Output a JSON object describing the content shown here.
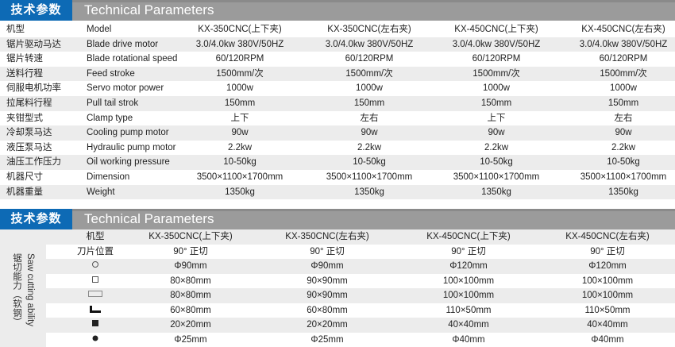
{
  "section1": {
    "title_cn": "技术参数",
    "title_en": "Technical Parameters"
  },
  "table1": {
    "rows": [
      {
        "cn": "机型",
        "en": "Model",
        "values": [
          "KX-350CNC(上下夹)",
          "KX-350CNC(左右夹)",
          "KX-450CNC(上下夹)",
          "KX-450CNC(左右夹)"
        ]
      },
      {
        "cn": "锯片驱动马达",
        "en": "Blade drive motor",
        "values": [
          "3.0/4.0kw  380V/50HZ",
          "3.0/4.0kw  380V/50HZ",
          "3.0/4.0kw  380V/50HZ",
          "3.0/4.0kw  380V/50HZ"
        ]
      },
      {
        "cn": "锯片转速",
        "en": "Blade rotational speed",
        "values": [
          "60/120RPM",
          "60/120RPM",
          "60/120RPM",
          "60/120RPM"
        ]
      },
      {
        "cn": "送料行程",
        "en": "Feed stroke",
        "values": [
          "1500mm/次",
          "1500mm/次",
          "1500mm/次",
          "1500mm/次"
        ]
      },
      {
        "cn": "伺服电机功率",
        "en": "Servo motor power",
        "values": [
          "1000w",
          "1000w",
          "1000w",
          "1000w"
        ]
      },
      {
        "cn": "拉尾料行程",
        "en": "Pull tail strok",
        "values": [
          "150mm",
          "150mm",
          "150mm",
          "150mm"
        ]
      },
      {
        "cn": "夹钳型式",
        "en": "Clamp type",
        "values": [
          "上下",
          "左右",
          "上下",
          "左右"
        ]
      },
      {
        "cn": "冷却泵马达",
        "en": "Cooling pump motor",
        "values": [
          "90w",
          "90w",
          "90w",
          "90w"
        ]
      },
      {
        "cn": "液压泵马达",
        "en": "Hydraulic pump motor",
        "values": [
          "2.2kw",
          "2.2kw",
          "2.2kw",
          "2.2kw"
        ]
      },
      {
        "cn": "油压工作压力",
        "en": "Oil working pressure",
        "values": [
          "10-50kg",
          "10-50kg",
          "10-50kg",
          "10-50kg"
        ]
      },
      {
        "cn": "机器尺寸",
        "en": "Dimension",
        "values": [
          "3500×1100×1700mm",
          "3500×1100×1700mm",
          "3500×1100×1700mm",
          "3500×1100×1700mm"
        ]
      },
      {
        "cn": "机器重量",
        "en": "Weight",
        "values": [
          "1350kg",
          "1350kg",
          "1350kg",
          "1350kg"
        ]
      }
    ]
  },
  "section2": {
    "title_cn": "技术参数",
    "title_en": "Technical Parameters",
    "side_label_en": "Saw cutting ability",
    "side_label_cn": "锯切能力（软钢）"
  },
  "table2": {
    "rows": [
      {
        "label": "机型",
        "values": [
          "KX-350CNC(上下夹)",
          "KX-350CNC(左右夹)",
          "KX-450CNC(上下夹)",
          "KX-450CNC(左右夹)"
        ]
      },
      {
        "label": "刀片位置",
        "values": [
          "90°  正切",
          "90°  正切",
          "90°  正切",
          "90°  正切"
        ]
      },
      {
        "icon": "round-bar-icon",
        "values": [
          "Φ90mm",
          "Φ90mm",
          "Φ120mm",
          "Φ120mm"
        ]
      },
      {
        "icon": "square-tube-icon",
        "values": [
          "80×80mm",
          "90×90mm",
          "100×100mm",
          "100×100mm"
        ]
      },
      {
        "icon": "rectangular-tube-icon",
        "values": [
          "80×80mm",
          "90×90mm",
          "100×100mm",
          "100×100mm"
        ]
      },
      {
        "icon": "angle-steel-icon",
        "values": [
          "60×80mm",
          "60×80mm",
          "110×50mm",
          "110×50mm"
        ]
      },
      {
        "icon": "solid-square-icon",
        "values": [
          "20×20mm",
          "20×20mm",
          "40×40mm",
          "40×40mm"
        ]
      },
      {
        "icon": "solid-round-icon",
        "values": [
          "Φ25mm",
          "Φ25mm",
          "Φ40mm",
          "Φ40mm"
        ]
      }
    ]
  },
  "colors": {
    "blue": "#0d6ab5",
    "header_gray": "#9b9b9b",
    "row_gray": "#ececec"
  }
}
